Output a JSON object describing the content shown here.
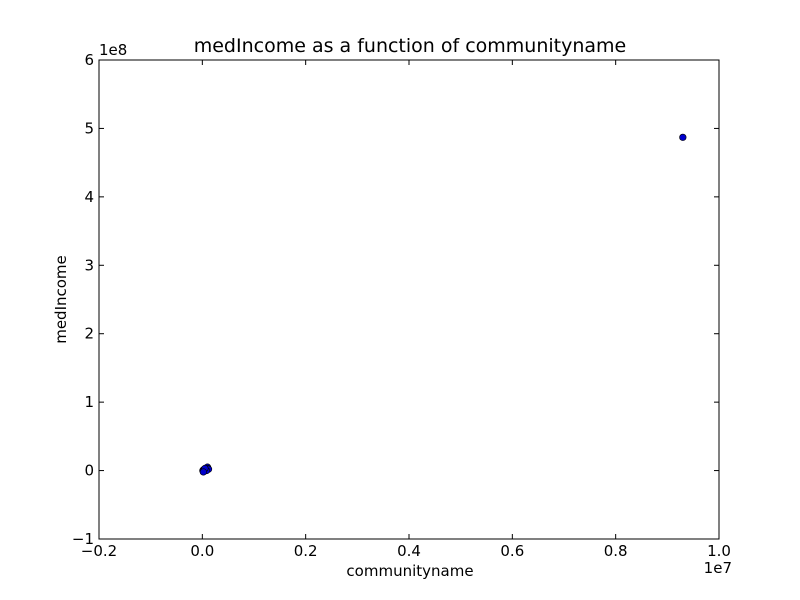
{
  "chart_data": {
    "type": "scatter",
    "title": "medIncome as a function of communityname",
    "xlabel": "communityname",
    "ylabel": "medIncome",
    "x_offset_label": "1e7",
    "y_offset_label": "1e8",
    "xlim": [
      -0.2,
      1.0
    ],
    "ylim": [
      -1,
      6
    ],
    "x_ticks": [
      -0.2,
      0.0,
      0.2,
      0.4,
      0.6,
      0.8,
      1.0
    ],
    "x_tick_labels": [
      "−0.2",
      "0.0",
      "0.2",
      "0.4",
      "0.6",
      "0.8",
      "1.0"
    ],
    "y_ticks": [
      -1,
      0,
      1,
      2,
      3,
      4,
      5,
      6
    ],
    "y_tick_labels": [
      "−1",
      "0",
      "1",
      "2",
      "3",
      "4",
      "5",
      "6"
    ],
    "grid": false,
    "legend": "none",
    "marker_color": "#0000cc",
    "points": [
      {
        "x": 0.001,
        "y": 0.0
      },
      {
        "x": 0.002,
        "y": 0.01
      },
      {
        "x": 0.003,
        "y": -0.01
      },
      {
        "x": 0.004,
        "y": 0.02
      },
      {
        "x": 0.005,
        "y": 0.0
      },
      {
        "x": 0.006,
        "y": 0.03
      },
      {
        "x": 0.007,
        "y": 0.01
      },
      {
        "x": 0.008,
        "y": 0.04
      },
      {
        "x": 0.009,
        "y": 0.02
      },
      {
        "x": 0.01,
        "y": 0.05
      },
      {
        "x": 0.011,
        "y": 0.03
      },
      {
        "x": 0.012,
        "y": 0.02
      },
      {
        "x": 0.008,
        "y": 0.0
      },
      {
        "x": 0.005,
        "y": 0.03
      },
      {
        "x": 0.002,
        "y": -0.02
      },
      {
        "x": 0.93,
        "y": 4.87
      }
    ]
  }
}
